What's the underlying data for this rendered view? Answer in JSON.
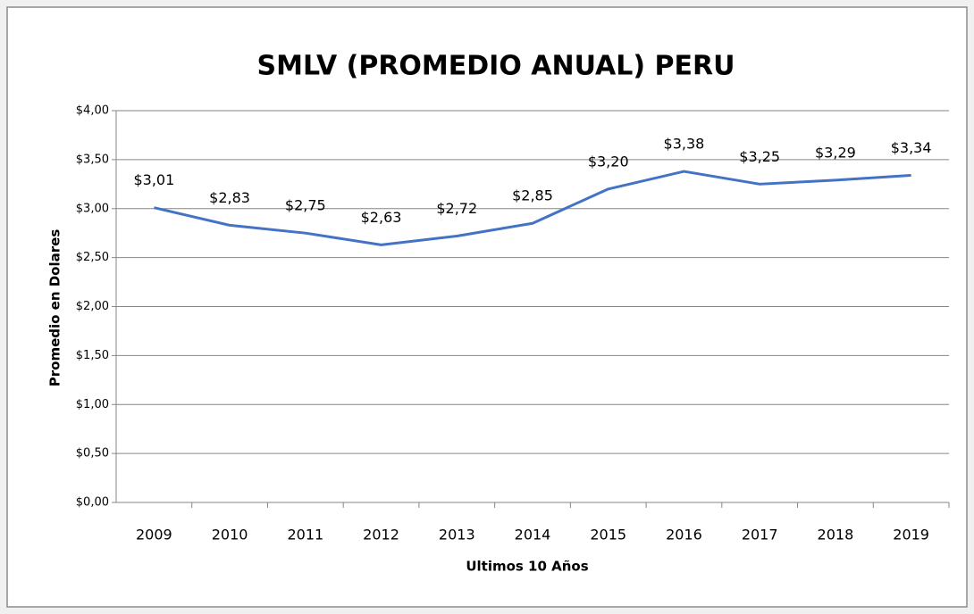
{
  "chart_data": {
    "type": "line",
    "title": "SMLV (PROMEDIO ANUAL) PERU",
    "x_label": "Ultimos 10 Años",
    "y_label": "Promedio en Dolares",
    "categories": [
      "2009",
      "2010",
      "2011",
      "2012",
      "2013",
      "2014",
      "2015",
      "2016",
      "2017",
      "2018",
      "2019"
    ],
    "values": [
      3.01,
      2.83,
      2.75,
      2.63,
      2.72,
      2.85,
      3.2,
      3.38,
      3.25,
      3.29,
      3.34
    ],
    "value_labels": [
      "$3,01",
      "$2,83",
      "$2,75",
      "$2,63",
      "$2,72",
      "$2,85",
      "$3,20",
      "$3,38",
      "$3,25",
      "$3,29",
      "$3,34"
    ],
    "color": "#4472c4",
    "ylim": [
      0,
      4
    ],
    "yticks": [
      {
        "value": 0,
        "label": "$0,00"
      },
      {
        "value": 0.5,
        "label": "$0,50"
      },
      {
        "value": 1,
        "label": "$1,00"
      },
      {
        "value": 1.5,
        "label": "$1,50"
      },
      {
        "value": 2,
        "label": "$2,00"
      },
      {
        "value": 2.5,
        "label": "$2,50"
      },
      {
        "value": 3,
        "label": "$3,00"
      },
      {
        "value": 3.5,
        "label": "$3,50"
      },
      {
        "value": 4,
        "label": "$4,00"
      }
    ],
    "grid": true
  }
}
